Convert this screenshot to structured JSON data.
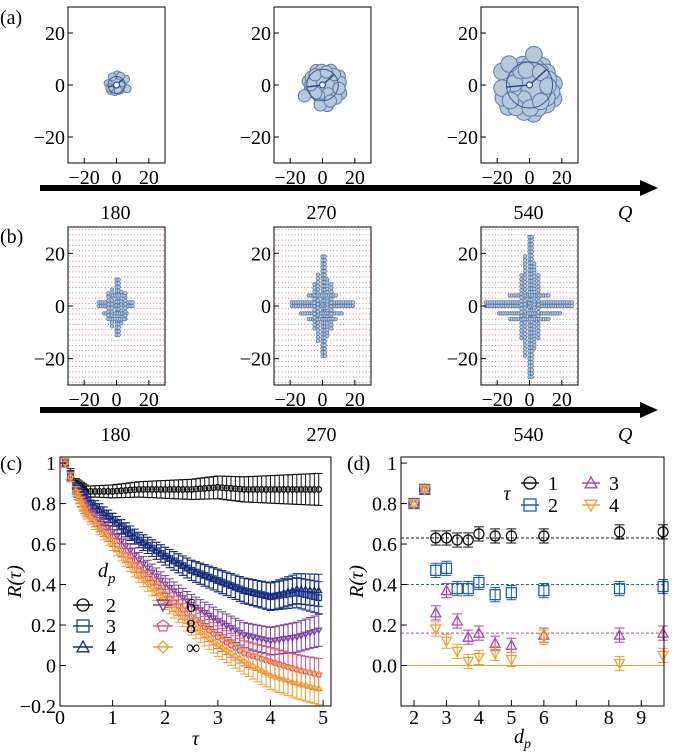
{
  "chart_data": [
    {
      "panel_label": "(a)",
      "type": "scatter",
      "x_ticks": [
        "−20",
        "0",
        "20"
      ],
      "y_ticks": [
        "20",
        "0",
        "−20"
      ],
      "xlim": [
        -30,
        30
      ],
      "ylim": [
        -30,
        30
      ],
      "arrow_axis_label": "Q",
      "subplots": [
        {
          "q_label": "180",
          "cluster_radius": 7
        },
        {
          "q_label": "270",
          "cluster_radius": 13
        },
        {
          "q_label": "540",
          "cluster_radius": 19
        }
      ]
    },
    {
      "panel_label": "(b)",
      "type": "scatter",
      "x_ticks": [
        "−20",
        "0",
        "20"
      ],
      "y_ticks": [
        "20",
        "0",
        "−20"
      ],
      "xlim": [
        -30,
        30
      ],
      "ylim": [
        -30,
        30
      ],
      "arrow_axis_label": "Q",
      "lattice_grid": true,
      "subplots": [
        {
          "q_label": "180",
          "arm_extent": 11
        },
        {
          "q_label": "270",
          "arm_extent": 19
        },
        {
          "q_label": "540",
          "arm_extent": 27
        }
      ]
    },
    {
      "panel_label": "(c)",
      "type": "line",
      "xlabel": "τ",
      "ylabel": "R(τ)",
      "xlim": [
        0,
        5.15
      ],
      "ylim": [
        -0.2,
        1.03
      ],
      "x_ticks": [
        "0",
        "1",
        "2",
        "3",
        "4",
        "5"
      ],
      "y_ticks": [
        "−0.2",
        "0",
        "0.2",
        "0.4",
        "0.6",
        "0.8",
        "1"
      ],
      "legend_title": "d",
      "legend_title_sub": "p",
      "legend_position": "lower-left",
      "series": [
        {
          "name": "2",
          "marker": "circle",
          "color": "#111111",
          "x": [
            0.1,
            0.3,
            0.5,
            1,
            1.5,
            2,
            2.5,
            3,
            3.5,
            4,
            4.5,
            5
          ],
          "y": [
            1.0,
            0.9,
            0.86,
            0.86,
            0.87,
            0.87,
            0.87,
            0.88,
            0.87,
            0.87,
            0.87,
            0.87
          ]
        },
        {
          "name": "3",
          "marker": "square",
          "color": "#1f3f8f",
          "x": [
            0.1,
            0.3,
            0.5,
            1,
            1.5,
            2,
            2.5,
            3,
            3.5,
            4,
            4.5,
            5
          ],
          "y": [
            1.0,
            0.88,
            0.82,
            0.72,
            0.62,
            0.54,
            0.47,
            0.42,
            0.37,
            0.34,
            0.36,
            0.33
          ]
        },
        {
          "name": "4",
          "marker": "triangle-up",
          "color": "#1a2a7a",
          "x": [
            0.1,
            0.3,
            0.5,
            1,
            1.5,
            2,
            2.5,
            3,
            3.5,
            4,
            4.5,
            5
          ],
          "y": [
            1.0,
            0.88,
            0.82,
            0.72,
            0.62,
            0.54,
            0.47,
            0.42,
            0.37,
            0.34,
            0.38,
            0.37
          ]
        },
        {
          "name": "6",
          "marker": "triangle-down",
          "color": "#7a3fa0",
          "x": [
            0.1,
            0.3,
            0.5,
            1,
            1.5,
            2,
            2.5,
            3,
            3.5,
            4,
            4.5,
            5
          ],
          "y": [
            1.0,
            0.87,
            0.78,
            0.66,
            0.52,
            0.4,
            0.3,
            0.22,
            0.15,
            0.12,
            0.14,
            0.18
          ]
        },
        {
          "name": "8",
          "marker": "pentagon",
          "color": "#e0507a",
          "x": [
            0.1,
            0.3,
            0.5,
            1,
            1.5,
            2,
            2.5,
            3,
            3.5,
            4,
            4.5,
            5
          ],
          "y": [
            1.0,
            0.86,
            0.76,
            0.62,
            0.47,
            0.35,
            0.24,
            0.14,
            0.06,
            0.02,
            -0.02,
            -0.05
          ]
        },
        {
          "name": "∞",
          "marker": "diamond",
          "color": "#f0a030",
          "x": [
            0.1,
            0.3,
            0.5,
            1,
            1.5,
            2,
            2.5,
            3,
            3.5,
            4,
            4.5,
            5
          ],
          "y": [
            1.0,
            0.86,
            0.75,
            0.6,
            0.45,
            0.32,
            0.2,
            0.1,
            0.02,
            -0.05,
            -0.09,
            -0.12
          ]
        }
      ]
    },
    {
      "panel_label": "(d)",
      "type": "scatter",
      "xlabel": "d",
      "xlabel_sub": "p",
      "ylabel": "R(τ)",
      "xlim": [
        1.6,
        9.7
      ],
      "ylim": [
        -0.2,
        1.03
      ],
      "x_ticks": [
        "2",
        "3",
        "4",
        "5",
        "6",
        "8",
        "9"
      ],
      "y_ticks": [
        "0.0",
        "0.2",
        "0.4",
        "0.6",
        "0.8",
        "1"
      ],
      "legend_title": "τ",
      "legend_position": "top-right",
      "x_positions": [
        2,
        2.33,
        2.67,
        3,
        3.33,
        3.67,
        4,
        4.5,
        5,
        6,
        8.33,
        9.67
      ],
      "series": [
        {
          "name": "1",
          "marker": "circle",
          "color": "#111111",
          "y": [
            0.8,
            0.87,
            0.63,
            0.63,
            0.62,
            0.62,
            0.65,
            0.64,
            0.64,
            0.64,
            0.66,
            0.66
          ],
          "ref": 0.63
        },
        {
          "name": "2",
          "marker": "square",
          "color": "#1f5faf",
          "y": [
            0.8,
            0.87,
            0.47,
            0.48,
            0.38,
            0.38,
            0.41,
            0.35,
            0.36,
            0.37,
            0.38,
            0.39
          ],
          "ref": 0.4
        },
        {
          "name": "3",
          "marker": "triangle-up",
          "color": "#b040b0",
          "y": [
            0.8,
            0.87,
            0.26,
            0.37,
            0.22,
            0.14,
            0.16,
            0.11,
            0.1,
            0.15,
            0.15,
            0.16
          ],
          "ref": 0.16
        },
        {
          "name": "4",
          "marker": "triangle-down",
          "color": "#f0a030",
          "y": [
            0.8,
            0.87,
            0.18,
            0.12,
            0.07,
            0.02,
            0.04,
            0.06,
            0.03,
            0.14,
            0.01,
            0.05
          ],
          "ref": 0.0
        }
      ]
    }
  ]
}
